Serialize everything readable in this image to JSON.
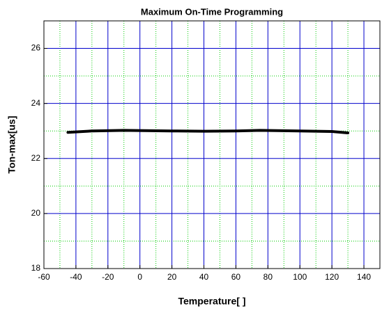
{
  "chart_data": {
    "type": "line",
    "title": "Maximum On-Time Programming",
    "xlabel": "Temperature[   ]",
    "ylabel": "Ton-max[us]",
    "x": [
      -45,
      -30,
      -10,
      20,
      40,
      60,
      75,
      100,
      120,
      130
    ],
    "series": [
      {
        "color": "#000000",
        "values": [
          22.95,
          23.0,
          23.02,
          23.0,
          22.99,
          23.0,
          23.02,
          23.0,
          22.98,
          22.93
        ]
      }
    ],
    "xlim": [
      -60,
      150
    ],
    "xticks": [
      -60,
      -40,
      -20,
      0,
      20,
      40,
      60,
      80,
      100,
      120,
      140
    ],
    "xminor": [
      -50,
      -30,
      -10,
      10,
      30,
      50,
      70,
      90,
      110,
      130
    ],
    "ylim": [
      18,
      27
    ],
    "yticks": [
      18,
      20,
      22,
      24,
      26
    ],
    "yminor": [
      19,
      21,
      23,
      25
    ],
    "grid": true,
    "grid_color": "#0000cc",
    "minor_grid_color": "#00cc00"
  }
}
